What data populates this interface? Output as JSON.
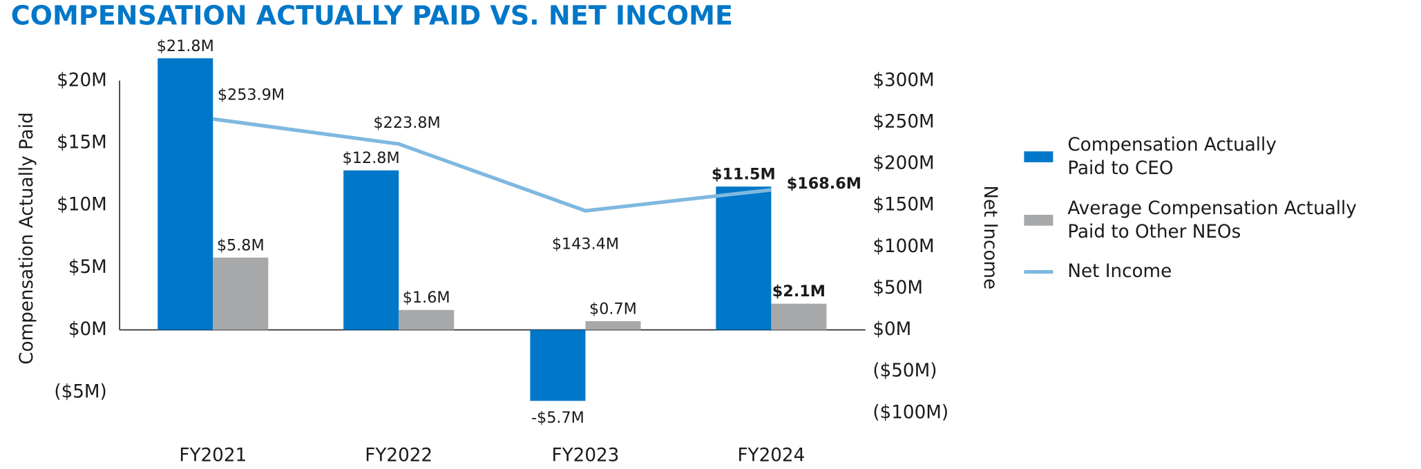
{
  "chart_data": {
    "type": "bar",
    "title": "COMPENSATION ACTUALLY PAID VS. NET INCOME",
    "y_label": "Compensation Actually Paid",
    "y2_label": "Net Income",
    "categories": [
      "FY2021",
      "FY2022",
      "FY2023",
      "FY2024"
    ],
    "series": [
      {
        "name": "Compensation Actually Paid to CEO",
        "color": "#0077c8",
        "type": "bar",
        "values": [
          21.8,
          12.8,
          -5.7,
          11.5
        ],
        "value_labels": [
          "$21.8M",
          "$12.8M",
          "-$5.7M",
          "$11.5M"
        ]
      },
      {
        "name": "Average Compensation Actually Paid to Other NEOs",
        "color": "#a7a8aa",
        "type": "bar",
        "values": [
          5.8,
          1.6,
          0.7,
          2.1
        ],
        "value_labels": [
          "$5.8M",
          "$1.6M",
          "$0.7M",
          "$2.1M"
        ]
      },
      {
        "name": "Net Income",
        "color": "#7fb8e0",
        "type": "line",
        "axis": "y2",
        "values": [
          253.9,
          223.8,
          143.4,
          168.6
        ],
        "value_labels": [
          "$253.9M",
          "$223.8M",
          "$143.4M",
          "$168.6M"
        ]
      }
    ],
    "ylim": [
      -6,
      20
    ],
    "yticks": [
      {
        "value": 20,
        "label": "$20M"
      },
      {
        "value": 15,
        "label": "$15M"
      },
      {
        "value": 10,
        "label": "$10M"
      },
      {
        "value": 5,
        "label": "$5M"
      },
      {
        "value": 0,
        "label": "$0M"
      },
      {
        "value": -5,
        "label": "($5M)"
      }
    ],
    "y2lim": [
      -100,
      300
    ],
    "y2ticks": [
      {
        "value": 300,
        "label": "$300M"
      },
      {
        "value": 250,
        "label": "$250M"
      },
      {
        "value": 200,
        "label": "$200M"
      },
      {
        "value": 150,
        "label": "$150M"
      },
      {
        "value": 100,
        "label": "$100M"
      },
      {
        "value": 50,
        "label": "$50M"
      },
      {
        "value": 0,
        "label": "$0M"
      },
      {
        "value": -50,
        "label": "($50M)"
      },
      {
        "value": -100,
        "label": "($100M)"
      }
    ],
    "legend": "right"
  }
}
